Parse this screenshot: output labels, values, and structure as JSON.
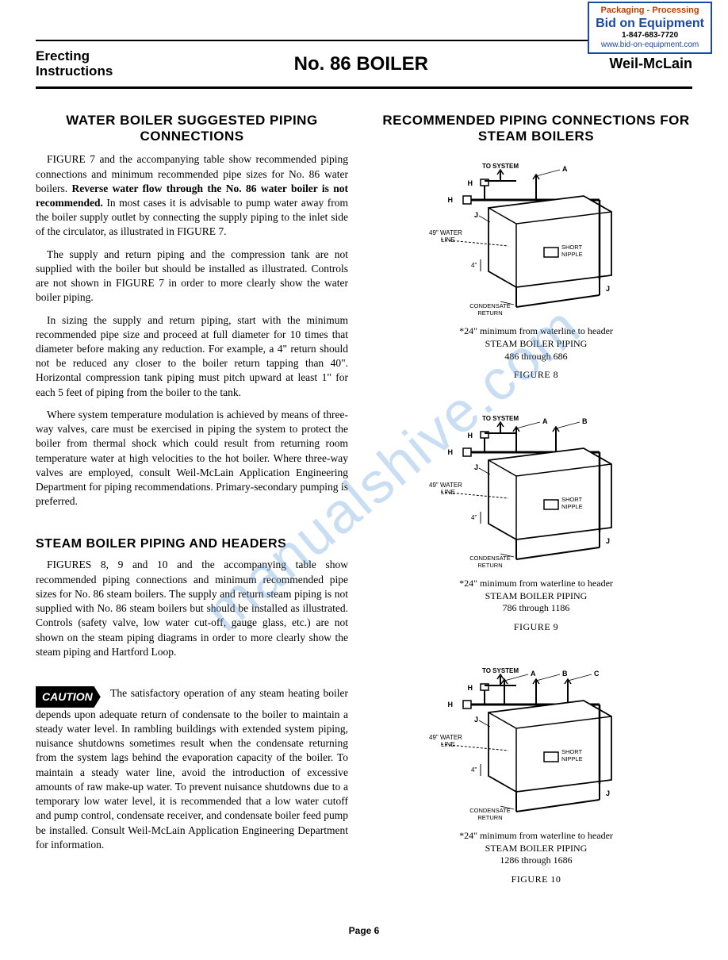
{
  "stamp": {
    "line1": "Packaging - Processing",
    "line2": "Bid on Equipment",
    "line3": "1-847-683-7720",
    "line4": "www.bid-on-equipment.com",
    "border_color": "#1a4aa0",
    "line1_color": "#c04000",
    "line2_color": "#1a4aa0",
    "line4_color": "#1a4aa0"
  },
  "header": {
    "left_line1": "Erecting",
    "left_line2": "Instructions",
    "center": "No. 86  BOILER",
    "right": "Weil-McLain"
  },
  "watermark": "manualshive.com",
  "left_column": {
    "title1": "WATER BOILER SUGGESTED PIPING CONNECTIONS",
    "p1_a": "FIGURE 7 and the accompanying table show recommended piping connections and minimum recommended pipe sizes for No. 86 water boilers. ",
    "p1_bold": "Reverse water flow through the No. 86 water boiler is not recommended.",
    "p1_b": " In most cases it is advisable to pump water away from the boiler supply outlet by connecting the supply piping to the inlet side of the circulator, as illustrated in FIGURE 7.",
    "p2": "The supply and return piping and the compression tank are not supplied with the boiler but should be installed as illustrated. Controls are not shown in FIGURE 7 in order to more clearly show the water boiler piping.",
    "p3": "In sizing the supply and return piping, start with the minimum recommended pipe size and proceed at full diameter for 10 times that diameter before making any reduction. For example, a 4\" return should not be reduced any closer to the boiler return tapping than 40\". Horizontal compression tank piping must pitch upward at least 1\" for each 5 feet of piping from the boiler to the tank.",
    "p4": "Where system temperature modulation is achieved by means of three-way valves, care must be exercised in piping the system to protect the boiler from thermal shock which could result from returning room temperature water at high velocities to the hot boiler. Where three-way valves are employed, consult Weil-McLain Application Engineering Department for piping recommendations. Primary-secondary pumping is preferred.",
    "title2": "STEAM BOILER PIPING AND HEADERS",
    "p5": "FIGURES 8, 9 and 10 and the accompanying table show recommended piping connections and minimum recommended pipe sizes for No. 86 steam boilers. The supply and return steam piping is not supplied with No. 86 steam boilers but should be installed as illustrated. Controls (safety valve, low water cut-off, gauge glass, etc.) are not shown on the steam piping diagrams in order to more clearly show the steam piping and Hartford Loop.",
    "caution_label": "CAUTION",
    "caution_text": "The satisfactory operation of any steam heating boiler depends upon adequate return of condensate to the boiler to maintain a steady water level. In rambling buildings with extended system piping, nuisance shutdowns sometimes result when the condensate returning from the system lags behind the evaporation capacity of the boiler. To maintain a steady water line, avoid the introduction of excessive amounts of raw make-up water. To prevent nuisance shutdowns due to a temporary low water level, it is recommended that a low water cutoff and pump control, condensate receiver, and condensate boiler feed pump be installed. Consult Weil-McLain Application Engineering Department for information."
  },
  "right_column": {
    "title": "RECOMMENDED PIPING CONNECTIONS FOR STEAM BOILERS",
    "figures": [
      {
        "labels": {
          "to_system": "TO SYSTEM",
          "h": "H",
          "j": "J",
          "a": "A",
          "water_line": "49\" WATER LINE",
          "four": "4\"",
          "short_nipple": "SHORT NIPPLE",
          "condensate": "CONDENSATE RETURN"
        },
        "caption_line1": "*24\" minimum from waterline to header",
        "caption_line2": "STEAM BOILER PIPING",
        "caption_line3": "486 through 686",
        "figure_label": "FIGURE 8",
        "risers": 1
      },
      {
        "labels": {
          "to_system": "TO SYSTEM",
          "h": "H",
          "j": "J",
          "a": "A",
          "b": "B",
          "water_line": "49\" WATER LINE",
          "four": "4\"",
          "short_nipple": "SHORT NIPPLE",
          "condensate": "CONDENSATE RETURN"
        },
        "caption_line1": "*24\" minimum from waterline to header",
        "caption_line2": "STEAM BOILER PIPING",
        "caption_line3": "786 through 1186",
        "figure_label": "FIGURE 9",
        "risers": 2
      },
      {
        "labels": {
          "to_system": "TO SYSTEM",
          "h": "H",
          "j": "J",
          "a": "A",
          "b": "B",
          "c": "C",
          "water_line": "49\" WATER LINE",
          "four": "4\"",
          "short_nipple": "SHORT NIPPLE",
          "condensate": "CONDENSATE RETURN"
        },
        "caption_line1": "*24\" minimum from waterline to header",
        "caption_line2": "STEAM BOILER PIPING",
        "caption_line3": "1286 through 1686",
        "figure_label": "FIGURE 10",
        "risers": 3
      }
    ]
  },
  "page_number": "Page 6",
  "colors": {
    "text": "#000000",
    "background": "#ffffff",
    "watermark": "rgba(100,160,220,0.35)"
  }
}
